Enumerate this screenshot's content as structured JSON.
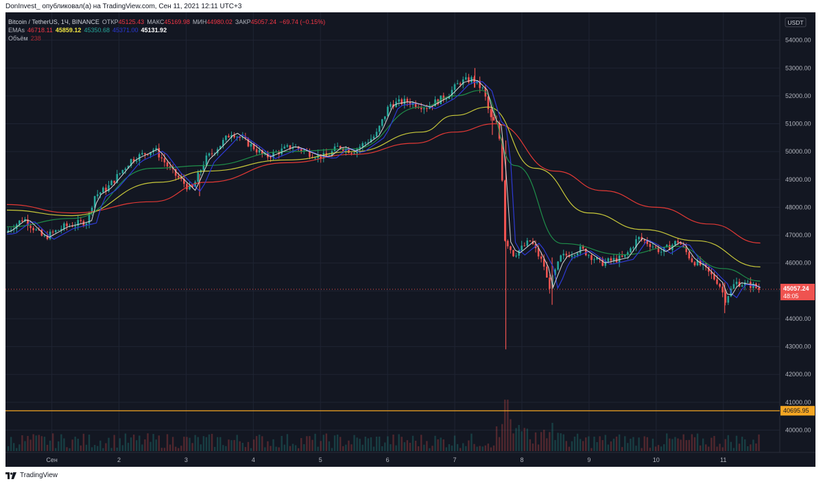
{
  "header": {
    "text": "DonInvest_ опубликовал(а) на TradingView.com, Сен 11, 2021 12:11 UTC+3"
  },
  "legend": {
    "symbol": "Bitcoin / TetherUS, 1Ч, BINANCE",
    "open_label": "ОТКР",
    "open": "45125.43",
    "high_label": "МАКС",
    "high": "45169.98",
    "low_label": "МИН",
    "low": "44980.02",
    "close_label": "ЗАКР",
    "close": "45057.24",
    "change": "−69.74 (−0.15%)",
    "ema_label": "EMAs",
    "ema1": "46718.11",
    "ema2": "45859.12",
    "ema3": "45350.68",
    "ema4": "45371.00",
    "ema5": "45131.92",
    "volume_label": "Объём",
    "volume": "238"
  },
  "price_axis": {
    "currency": "USDT",
    "last_price": "45057.24",
    "countdown": "48:05",
    "hline_label": "40695.95"
  },
  "footer": {
    "brand": "TradingView"
  },
  "colors": {
    "bg": "#131722",
    "grid": "#1f2433",
    "up": "#26a69a",
    "down": "#ef5350",
    "ema_red": "#e53935",
    "ema_yellow": "#c9c93a",
    "ema_green": "#1f8f4a",
    "ema_blue": "#2e3ad6",
    "ema_white": "#d9d9d9",
    "hline": "#f5a623",
    "last_price": "#ef5350"
  },
  "chart_data": {
    "type": "candlestick",
    "ylim": [
      39200,
      55000
    ],
    "y_ticks": [
      40000,
      41000,
      42000,
      43000,
      44000,
      45000,
      46000,
      47000,
      48000,
      49000,
      50000,
      51000,
      52000,
      53000,
      54000
    ],
    "y_tick_labels": [
      "40000.00",
      "41000.00",
      "42000.00",
      "43000.00",
      "44000.00",
      "45000.00",
      "46000.00",
      "47000.00",
      "48000.00",
      "49000.00",
      "50000.00",
      "51000.00",
      "52000.00",
      "53000.00",
      "54000.00"
    ],
    "x_ticks": [
      {
        "label": "Сен",
        "t": 1
      },
      {
        "label": "2",
        "t": 2
      },
      {
        "label": "3",
        "t": 3
      },
      {
        "label": "4",
        "t": 4
      },
      {
        "label": "5",
        "t": 5
      },
      {
        "label": "6",
        "t": 6
      },
      {
        "label": "7",
        "t": 7
      },
      {
        "label": "8",
        "t": 8
      },
      {
        "label": "9",
        "t": 9
      },
      {
        "label": "10",
        "t": 10
      },
      {
        "label": "11",
        "t": 11
      }
    ],
    "t_range": [
      0.33,
      11.82
    ],
    "horizontal_line": 40695.95,
    "last_price": 45057.24,
    "anchors": [
      [
        0.33,
        47100
      ],
      [
        0.6,
        47600
      ],
      [
        0.9,
        46900
      ],
      [
        1.2,
        47300
      ],
      [
        1.55,
        47500
      ],
      [
        1.65,
        48400
      ],
      [
        1.85,
        48700
      ],
      [
        2.2,
        49700
      ],
      [
        2.55,
        50100
      ],
      [
        2.8,
        49300
      ],
      [
        3.1,
        48600
      ],
      [
        3.3,
        49700
      ],
      [
        3.55,
        50300
      ],
      [
        3.7,
        50700
      ],
      [
        4.0,
        50200
      ],
      [
        4.2,
        49800
      ],
      [
        4.6,
        50200
      ],
      [
        4.9,
        49900
      ],
      [
        5.1,
        49800
      ],
      [
        5.3,
        50200
      ],
      [
        5.5,
        50000
      ],
      [
        5.85,
        50600
      ],
      [
        6.05,
        51700
      ],
      [
        6.3,
        51800
      ],
      [
        6.6,
        51600
      ],
      [
        6.9,
        52000
      ],
      [
        7.1,
        52500
      ],
      [
        7.28,
        52600
      ],
      [
        7.45,
        52200
      ],
      [
        7.55,
        51200
      ],
      [
        7.67,
        50900
      ],
      [
        7.72,
        49500
      ],
      [
        7.76,
        46900
      ],
      [
        7.9,
        46300
      ],
      [
        8.15,
        46800
      ],
      [
        8.35,
        45900
      ],
      [
        8.42,
        45100
      ],
      [
        8.6,
        46200
      ],
      [
        8.9,
        46500
      ],
      [
        9.2,
        46000
      ],
      [
        9.55,
        46200
      ],
      [
        9.75,
        46900
      ],
      [
        9.92,
        46700
      ],
      [
        10.1,
        46400
      ],
      [
        10.35,
        46800
      ],
      [
        10.55,
        46100
      ],
      [
        10.7,
        45900
      ],
      [
        10.82,
        45600
      ],
      [
        10.95,
        45300
      ],
      [
        11.05,
        44700
      ],
      [
        11.2,
        45300
      ],
      [
        11.45,
        45200
      ],
      [
        11.55,
        45057
      ]
    ],
    "spikes": [
      {
        "t": 7.76,
        "low": 42900,
        "high": 50400
      },
      {
        "t": 7.56,
        "low": 50600,
        "high": 51600
      },
      {
        "t": 8.45,
        "low": 44500,
        "high": 46200
      },
      {
        "t": 11.02,
        "low": 44200,
        "high": 45300
      },
      {
        "t": 3.2,
        "low": 48400,
        "high": 49200
      },
      {
        "t": 7.3,
        "low": 52300,
        "high": 53000
      }
    ],
    "ema_series": [
      {
        "color_key": "ema_red",
        "points": [
          [
            0.33,
            48100
          ],
          [
            1.3,
            47800
          ],
          [
            2.5,
            48200
          ],
          [
            3.3,
            48900
          ],
          [
            4.5,
            49600
          ],
          [
            5.5,
            49900
          ],
          [
            6.4,
            50300
          ],
          [
            7.0,
            50700
          ],
          [
            7.6,
            51000
          ],
          [
            8.5,
            49300
          ],
          [
            9.2,
            48600
          ],
          [
            10.0,
            48000
          ],
          [
            10.8,
            47400
          ],
          [
            11.55,
            46718
          ]
        ]
      },
      {
        "color_key": "ema_yellow",
        "points": [
          [
            0.33,
            47900
          ],
          [
            1.3,
            47700
          ],
          [
            2.6,
            48900
          ],
          [
            3.3,
            49300
          ],
          [
            4.5,
            49700
          ],
          [
            5.5,
            50000
          ],
          [
            6.5,
            50700
          ],
          [
            7.0,
            51300
          ],
          [
            7.5,
            51600
          ],
          [
            8.2,
            49400
          ],
          [
            9.0,
            47800
          ],
          [
            9.8,
            47200
          ],
          [
            10.6,
            46800
          ],
          [
            11.55,
            45859
          ]
        ]
      },
      {
        "color_key": "ema_green",
        "points": [
          [
            0.33,
            47300
          ],
          [
            1.3,
            47600
          ],
          [
            2.5,
            49400
          ],
          [
            3.3,
            49500
          ],
          [
            4.5,
            50000
          ],
          [
            5.5,
            50100
          ],
          [
            6.5,
            51600
          ],
          [
            7.0,
            52000
          ],
          [
            7.4,
            52200
          ],
          [
            7.9,
            49500
          ],
          [
            8.6,
            46700
          ],
          [
            9.5,
            46300
          ],
          [
            10.3,
            46600
          ],
          [
            11.0,
            45800
          ],
          [
            11.55,
            45350
          ]
        ]
      }
    ]
  }
}
